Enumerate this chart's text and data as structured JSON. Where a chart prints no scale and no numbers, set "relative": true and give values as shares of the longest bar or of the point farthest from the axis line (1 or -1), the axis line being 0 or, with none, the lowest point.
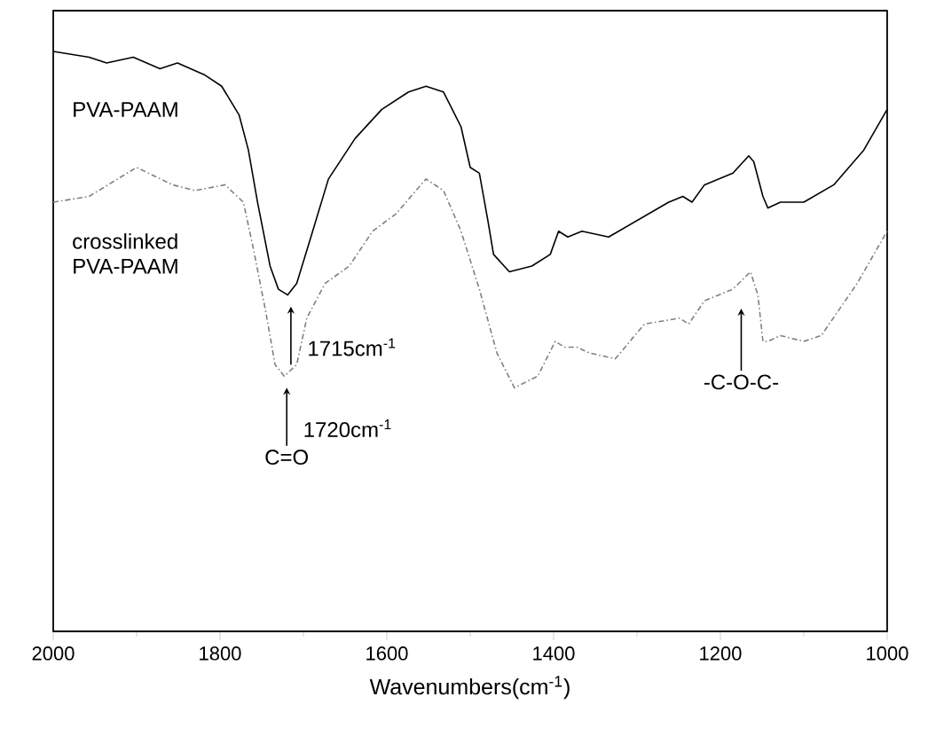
{
  "chart_data": {
    "type": "line",
    "relative": true,
    "xlabel": "Wavenumbers(cm$^{-1}$)",
    "xlim": [
      2000,
      1000
    ],
    "xticks": [
      2000,
      1800,
      1600,
      1400,
      1200,
      1000
    ],
    "series": [
      {
        "name": "PVA-PAAM",
        "color": "#000000",
        "line_style": "solid",
        "x": [
          2000,
          1957,
          1936,
          1904,
          1872,
          1851,
          1819,
          1798,
          1777,
          1766,
          1755,
          1740,
          1730,
          1719,
          1708,
          1691,
          1670,
          1638,
          1606,
          1574,
          1553,
          1532,
          1511,
          1500,
          1489,
          1479,
          1472,
          1453,
          1426,
          1404,
          1394,
          1383,
          1366,
          1334,
          1298,
          1262,
          1245,
          1234,
          1219,
          1185,
          1166,
          1160,
          1149,
          1143,
          1128,
          1100,
          1064,
          1028,
          1000
        ],
        "values": [
          1.0,
          0.99,
          0.98,
          0.99,
          0.97,
          0.98,
          0.96,
          0.94,
          0.89,
          0.83,
          0.74,
          0.63,
          0.59,
          0.58,
          0.6,
          0.68,
          0.78,
          0.85,
          0.9,
          0.93,
          0.94,
          0.93,
          0.87,
          0.8,
          0.79,
          0.71,
          0.65,
          0.62,
          0.63,
          0.65,
          0.69,
          0.68,
          0.69,
          0.68,
          0.71,
          0.74,
          0.75,
          0.74,
          0.77,
          0.79,
          0.82,
          0.81,
          0.75,
          0.73,
          0.74,
          0.74,
          0.77,
          0.83,
          0.9
        ]
      },
      {
        "name": "crosslinked PVA-PAAM",
        "color": "#808080",
        "line_style": "dashed",
        "x": [
          2000,
          1957,
          1900,
          1857,
          1830,
          1794,
          1772,
          1760,
          1745,
          1734,
          1723,
          1708,
          1696,
          1674,
          1645,
          1617,
          1589,
          1553,
          1532,
          1511,
          1489,
          1468,
          1447,
          1419,
          1398,
          1387,
          1372,
          1357,
          1326,
          1291,
          1249,
          1238,
          1219,
          1185,
          1164,
          1155,
          1149,
          1143,
          1128,
          1100,
          1079,
          1036,
          1000
        ],
        "values": [
          0.74,
          0.75,
          0.8,
          0.77,
          0.76,
          0.77,
          0.74,
          0.66,
          0.55,
          0.46,
          0.44,
          0.46,
          0.54,
          0.6,
          0.63,
          0.69,
          0.72,
          0.78,
          0.76,
          0.69,
          0.59,
          0.48,
          0.42,
          0.44,
          0.5,
          0.49,
          0.49,
          0.48,
          0.47,
          0.53,
          0.54,
          0.53,
          0.57,
          0.59,
          0.62,
          0.58,
          0.5,
          0.5,
          0.51,
          0.5,
          0.51,
          0.6,
          0.69
        ]
      }
    ],
    "annotations": [
      {
        "text": "1715cm$^{-1}$",
        "x": 1715,
        "y": 0.58
      },
      {
        "text": "1720cm$^{-1}$",
        "x": 1720,
        "y": 0.44
      },
      "C=O",
      "-C-O-C-"
    ]
  }
}
